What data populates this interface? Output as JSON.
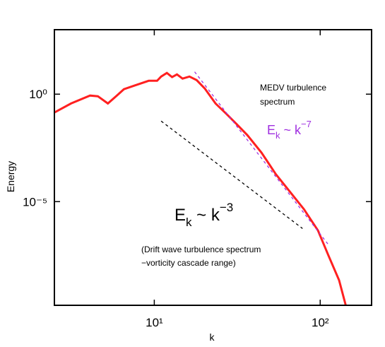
{
  "chart_data": {
    "type": "line",
    "xlabel": "k",
    "ylabel": "Energy",
    "xscale": "log",
    "yscale": "log",
    "xlim": [
      2.5,
      204
    ],
    "ylim": [
      1.5e-10,
      1000
    ],
    "xticks": [
      {
        "value": 10,
        "label": "10¹"
      },
      {
        "value": 100,
        "label": "10²"
      }
    ],
    "yticks": [
      {
        "value": 1e-05,
        "label": "10⁻⁵"
      },
      {
        "value": 1,
        "label": "10⁰"
      }
    ],
    "series": [
      {
        "color": "#ff2020",
        "dashed": false,
        "x": [
          2.5,
          3.15,
          4.1,
          4.57,
          5.25,
          5.95,
          6.56,
          7.6,
          9.25,
          10.4,
          11.0,
          11.9,
          12.8,
          13.7,
          14.8,
          16.3,
          18.0,
          20.2,
          23.4,
          27.2,
          31.5,
          36.4,
          44.3,
          54,
          65.6,
          79.8,
          97,
          112,
          130,
          143
        ],
        "values": [
          0.14,
          0.37,
          0.86,
          0.8,
          0.37,
          0.86,
          1.7,
          2.5,
          4.2,
          4.2,
          6.6,
          9.7,
          6.2,
          8.3,
          5.3,
          6.6,
          4.5,
          1.8,
          0.37,
          0.12,
          0.039,
          0.0123,
          0.0019,
          0.00019,
          2.9e-05,
          4.4e-06,
          4.5e-07,
          3.2e-08,
          2.2e-09,
          1.35e-10
        ]
      },
      {
        "color": "#a030e0",
        "dashed": true,
        "x": [
          17.5,
          112
        ],
        "values": [
          11,
          1e-07
        ]
      },
      {
        "color": "#000000",
        "dashed": true,
        "x": [
          11.0,
          78.3
        ],
        "values": [
          0.056,
          5.6e-07
        ]
      }
    ],
    "annotations": {
      "medv": [
        "MEDV turbulence",
        "spectrum"
      ],
      "law7": {
        "base": "E",
        "sub": "k",
        "mid": " ~ k",
        "sup": "−7"
      },
      "law3": {
        "base": "E",
        "sub": "k",
        "mid": " ~ k",
        "sup": "−3"
      },
      "drift": [
        "(Drift wave turbulence spectrum",
        "−vorticity cascade range)"
      ]
    }
  }
}
